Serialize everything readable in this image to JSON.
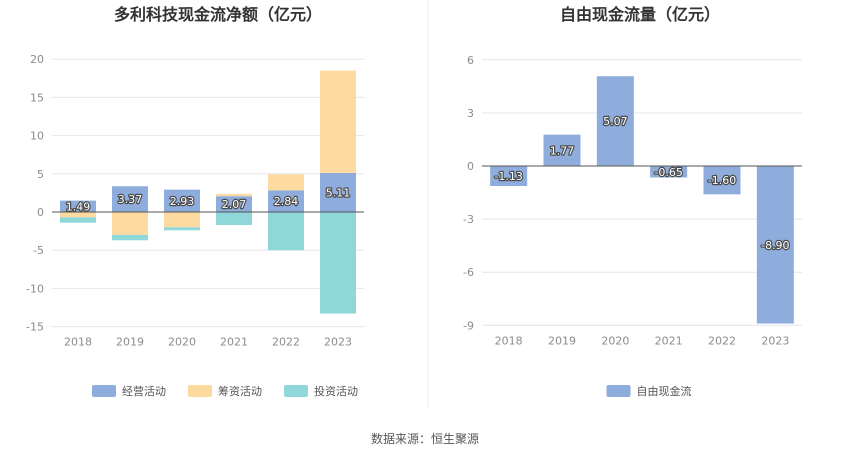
{
  "colors": {
    "operating": "#8eaddc",
    "financing": "#fddaa0",
    "investing": "#8fd7d9",
    "free_cash_flow": "#8eaddc",
    "grid": "#e3e6ee",
    "axis": "#555555",
    "divider": "#eeeeee"
  },
  "source_text": "数据来源：恒生聚源",
  "chart_data": [
    {
      "type": "bar",
      "stacked": true,
      "title": "多利科技现金流净额（亿元）",
      "categories": [
        "2018",
        "2019",
        "2020",
        "2021",
        "2022",
        "2023"
      ],
      "ylim": [
        -15,
        20
      ],
      "yticks": [
        -15,
        -10,
        -5,
        0,
        5,
        10,
        15,
        20
      ],
      "grid": true,
      "legend_position": "bottom",
      "series": [
        {
          "name": "经营活动",
          "key": "operating",
          "values": [
            1.49,
            3.37,
            2.93,
            2.07,
            2.84,
            5.11
          ],
          "labels": [
            "1.49",
            "3.37",
            "2.93",
            "2.07",
            "2.84",
            "5.11"
          ]
        },
        {
          "name": "筹资活动",
          "key": "financing",
          "values": [
            -0.7,
            -3.0,
            -2.0,
            0.3,
            2.1,
            13.4
          ]
        },
        {
          "name": "投资活动",
          "key": "investing",
          "values": [
            -0.7,
            -0.7,
            -0.4,
            -1.7,
            -5.0,
            -13.3
          ]
        }
      ]
    },
    {
      "type": "bar",
      "title": "自由现金流量（亿元）",
      "categories": [
        "2018",
        "2019",
        "2020",
        "2021",
        "2022",
        "2023"
      ],
      "ylim": [
        -9,
        6
      ],
      "yticks": [
        -9,
        -6,
        -3,
        0,
        3,
        6
      ],
      "grid": true,
      "legend_position": "bottom",
      "series": [
        {
          "name": "自由现金流",
          "key": "free_cash_flow",
          "values": [
            -1.13,
            1.77,
            5.07,
            -0.65,
            -1.6,
            -8.9
          ],
          "labels": [
            "-1.13",
            "1.77",
            "5.07",
            "-0.65",
            "-1.60",
            "-8.90"
          ]
        }
      ]
    }
  ]
}
